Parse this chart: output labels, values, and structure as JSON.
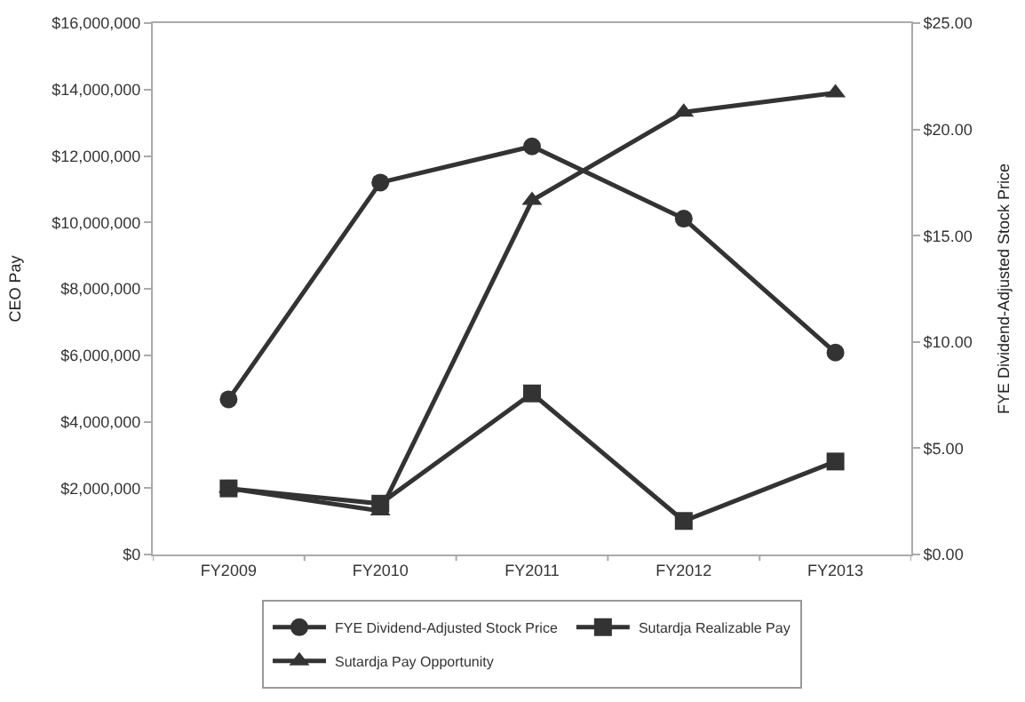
{
  "chart_data": {
    "type": "line",
    "categories": [
      "FY2009",
      "FY2010",
      "FY2011",
      "FY2012",
      "FY2013"
    ],
    "ylabel": "CEO Pay",
    "y2label": "FYE Dividend-Adjusted Stock Price",
    "ylim": [
      0,
      16000000
    ],
    "yticks": [
      {
        "value": 0,
        "label": "$0"
      },
      {
        "value": 2000000,
        "label": "$2,000,000"
      },
      {
        "value": 4000000,
        "label": "$4,000,000"
      },
      {
        "value": 6000000,
        "label": "$6,000,000"
      },
      {
        "value": 8000000,
        "label": "$8,000,000"
      },
      {
        "value": 10000000,
        "label": "$10,000,000"
      },
      {
        "value": 12000000,
        "label": "$12,000,000"
      },
      {
        "value": 14000000,
        "label": "$14,000,000"
      },
      {
        "value": 16000000,
        "label": "$16,000,000"
      }
    ],
    "y2lim": [
      0,
      25
    ],
    "y2ticks": [
      {
        "value": 0,
        "label": "$0.00"
      },
      {
        "value": 5,
        "label": "$5.00"
      },
      {
        "value": 10,
        "label": "$10.00"
      },
      {
        "value": 15,
        "label": "$15.00"
      },
      {
        "value": 20,
        "label": "$20.00"
      },
      {
        "value": 25,
        "label": "$25.00"
      }
    ],
    "series": [
      {
        "name": "FYE Dividend-Adjusted Stock Price",
        "color": "#333333",
        "axis": "y2",
        "marker": "circle",
        "values": [
          7.3,
          17.5,
          19.2,
          15.8,
          9.5
        ]
      },
      {
        "name": "Sutardja Realizable Pay",
        "color": "#333333",
        "marker": "square",
        "values": [
          1990000,
          1530000,
          4850000,
          1010000,
          2800000
        ]
      },
      {
        "name": "Sutardja Pay Opportunity",
        "color": "#333333",
        "marker": "triangle",
        "values": [
          1990000,
          1310000,
          10660000,
          13320000,
          13900000
        ]
      }
    ],
    "legend": "bottom",
    "line_style": "solid"
  }
}
